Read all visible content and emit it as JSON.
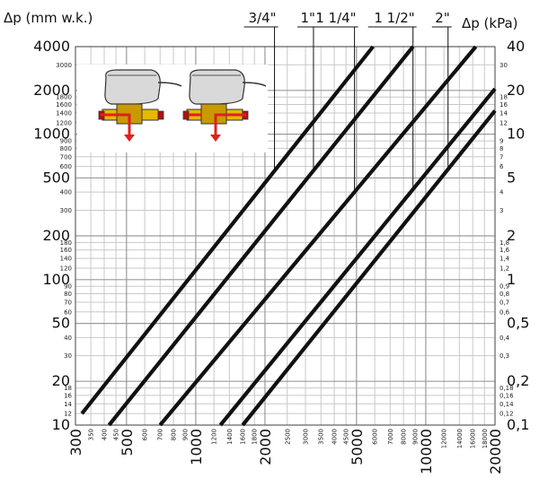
{
  "chart_data": {
    "type": "line",
    "x_scale": "log",
    "y_scale": "log",
    "xlim": [
      300,
      20000
    ],
    "ylim": [
      10,
      4000
    ],
    "left_axis_label": "Δp (mm w.k.)",
    "right_axis_label": "Δp (kPa)",
    "x_major_ticks": [
      {
        "v": 300,
        "label": "300"
      },
      {
        "v": 500,
        "label": "500"
      },
      {
        "v": 1000,
        "label": "1000"
      },
      {
        "v": 2000,
        "label": "2000"
      },
      {
        "v": 5000,
        "label": "5000"
      },
      {
        "v": 10000,
        "label": "10000"
      },
      {
        "v": 20000,
        "label": "20000"
      }
    ],
    "x_minor_ticks": [
      {
        "v": 350,
        "label": "350"
      },
      {
        "v": 400,
        "label": "400"
      },
      {
        "v": 450,
        "label": "450"
      },
      {
        "v": 600,
        "label": "600"
      },
      {
        "v": 700,
        "label": "700"
      },
      {
        "v": 800,
        "label": "800"
      },
      {
        "v": 900,
        "label": "900"
      },
      {
        "v": 1200,
        "label": "1200"
      },
      {
        "v": 1400,
        "label": "1400"
      },
      {
        "v": 1600,
        "label": "1600"
      },
      {
        "v": 1800,
        "label": "1800"
      },
      {
        "v": 2500,
        "label": "2500"
      },
      {
        "v": 3000,
        "label": "3000"
      },
      {
        "v": 3500,
        "label": "3500"
      },
      {
        "v": 4000,
        "label": "4000"
      },
      {
        "v": 4500,
        "label": "4500"
      },
      {
        "v": 6000,
        "label": "6000"
      },
      {
        "v": 7000,
        "label": "7000"
      },
      {
        "v": 8000,
        "label": "8000"
      },
      {
        "v": 9000,
        "label": "9000"
      },
      {
        "v": 12000,
        "label": "12000"
      },
      {
        "v": 14000,
        "label": "14000"
      },
      {
        "v": 16000,
        "label": "16000"
      },
      {
        "v": 18000,
        "label": "18000"
      }
    ],
    "y_left_major_ticks": [
      {
        "v": 10,
        "label": "10"
      },
      {
        "v": 20,
        "label": "20"
      },
      {
        "v": 50,
        "label": "50"
      },
      {
        "v": 100,
        "label": "100"
      },
      {
        "v": 200,
        "label": "200"
      },
      {
        "v": 500,
        "label": "500"
      },
      {
        "v": 1000,
        "label": "1000"
      },
      {
        "v": 2000,
        "label": "2000"
      },
      {
        "v": 4000,
        "label": "4000"
      }
    ],
    "y_left_minor_ticks": [
      {
        "v": 12,
        "label": "12"
      },
      {
        "v": 14,
        "label": "14"
      },
      {
        "v": 16,
        "label": "16"
      },
      {
        "v": 18,
        "label": "18"
      },
      {
        "v": 30,
        "label": "30"
      },
      {
        "v": 40,
        "label": "40"
      },
      {
        "v": 60,
        "label": "60"
      },
      {
        "v": 70,
        "label": "70"
      },
      {
        "v": 80,
        "label": "80"
      },
      {
        "v": 90,
        "label": "90"
      },
      {
        "v": 120,
        "label": "120"
      },
      {
        "v": 140,
        "label": "140"
      },
      {
        "v": 160,
        "label": "160"
      },
      {
        "v": 180,
        "label": "180"
      },
      {
        "v": 300,
        "label": "300"
      },
      {
        "v": 400,
        "label": "400"
      },
      {
        "v": 600,
        "label": "600"
      },
      {
        "v": 700,
        "label": "700"
      },
      {
        "v": 800,
        "label": "800"
      },
      {
        "v": 900,
        "label": "900"
      },
      {
        "v": 1200,
        "label": "1200"
      },
      {
        "v": 1400,
        "label": "1400"
      },
      {
        "v": 1600,
        "label": "1600"
      },
      {
        "v": 1800,
        "label": "1800"
      },
      {
        "v": 3000,
        "label": "3000"
      }
    ],
    "y_right_major_ticks": [
      {
        "v": 10,
        "label": "0,1"
      },
      {
        "v": 20,
        "label": "0,2"
      },
      {
        "v": 50,
        "label": "0,5"
      },
      {
        "v": 100,
        "label": "1"
      },
      {
        "v": 200,
        "label": "2"
      },
      {
        "v": 500,
        "label": "5"
      },
      {
        "v": 1000,
        "label": "10"
      },
      {
        "v": 2000,
        "label": "20"
      },
      {
        "v": 4000,
        "label": "40"
      }
    ],
    "y_right_minor_ticks": [
      {
        "v": 12,
        "label": "0,12"
      },
      {
        "v": 14,
        "label": "0,14"
      },
      {
        "v": 16,
        "label": "0,16"
      },
      {
        "v": 18,
        "label": "0,18"
      },
      {
        "v": 30,
        "label": "0,3"
      },
      {
        "v": 40,
        "label": "0,4"
      },
      {
        "v": 60,
        "label": "0,6"
      },
      {
        "v": 70,
        "label": "0,7"
      },
      {
        "v": 80,
        "label": "0,8"
      },
      {
        "v": 90,
        "label": "0,9"
      },
      {
        "v": 120,
        "label": "1,2"
      },
      {
        "v": 140,
        "label": "1,4"
      },
      {
        "v": 160,
        "label": "1,6"
      },
      {
        "v": 180,
        "label": "1,8"
      },
      {
        "v": 300,
        "label": "3"
      },
      {
        "v": 400,
        "label": "4"
      },
      {
        "v": 600,
        "label": "6"
      },
      {
        "v": 700,
        "label": "7"
      },
      {
        "v": 800,
        "label": "8"
      },
      {
        "v": 900,
        "label": "9"
      },
      {
        "v": 1200,
        "label": "12"
      },
      {
        "v": 1400,
        "label": "14"
      },
      {
        "v": 1600,
        "label": "16"
      },
      {
        "v": 1800,
        "label": "18"
      },
      {
        "v": 3000,
        "label": "30"
      }
    ],
    "series": [
      {
        "name": "3/4\"",
        "points": [
          [
            320,
            12
          ],
          [
            5900,
            4000
          ]
        ],
        "label_x": 2200
      },
      {
        "name": "1\"",
        "points": [
          [
            420,
            10
          ],
          [
            8800,
            4000
          ]
        ],
        "label_x": 3250
      },
      {
        "name": "1 1/4\"",
        "points": [
          [
            700,
            10
          ],
          [
            16500,
            4000
          ]
        ],
        "label_x": 4900
      },
      {
        "name": "1 1/2\"",
        "points": [
          [
            1280,
            10
          ],
          [
            20000,
            2050
          ]
        ],
        "label_x": 8800
      },
      {
        "name": "2\"",
        "points": [
          [
            1600,
            10
          ],
          [
            20000,
            1450
          ]
        ],
        "label_x": 12500
      }
    ],
    "grid": true,
    "legend": "top-left inset picture of two valves with flow arrows"
  },
  "colors": {
    "line": "#111111",
    "grid_major": "#9a9a9a",
    "grid_minor": "#c8c8c8",
    "valve_body": "#d9d9d9",
    "valve_brass": "#e7b800",
    "pipe_red": "#e02020"
  }
}
